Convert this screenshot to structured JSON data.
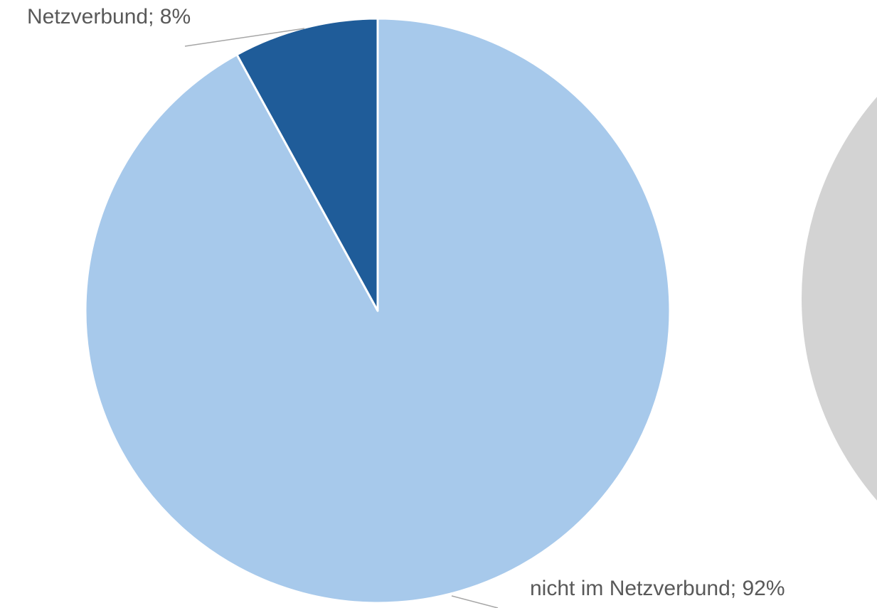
{
  "chart_data": {
    "type": "pie",
    "categories": [
      "nicht im Netzverbund",
      "Netzverbund"
    ],
    "values": [
      92,
      8
    ],
    "value_labels": [
      "nicht im Netzverbund; 92%",
      "Netzverbund; 8%"
    ],
    "colors": [
      "#a7c9eb",
      "#1f5c99"
    ]
  }
}
